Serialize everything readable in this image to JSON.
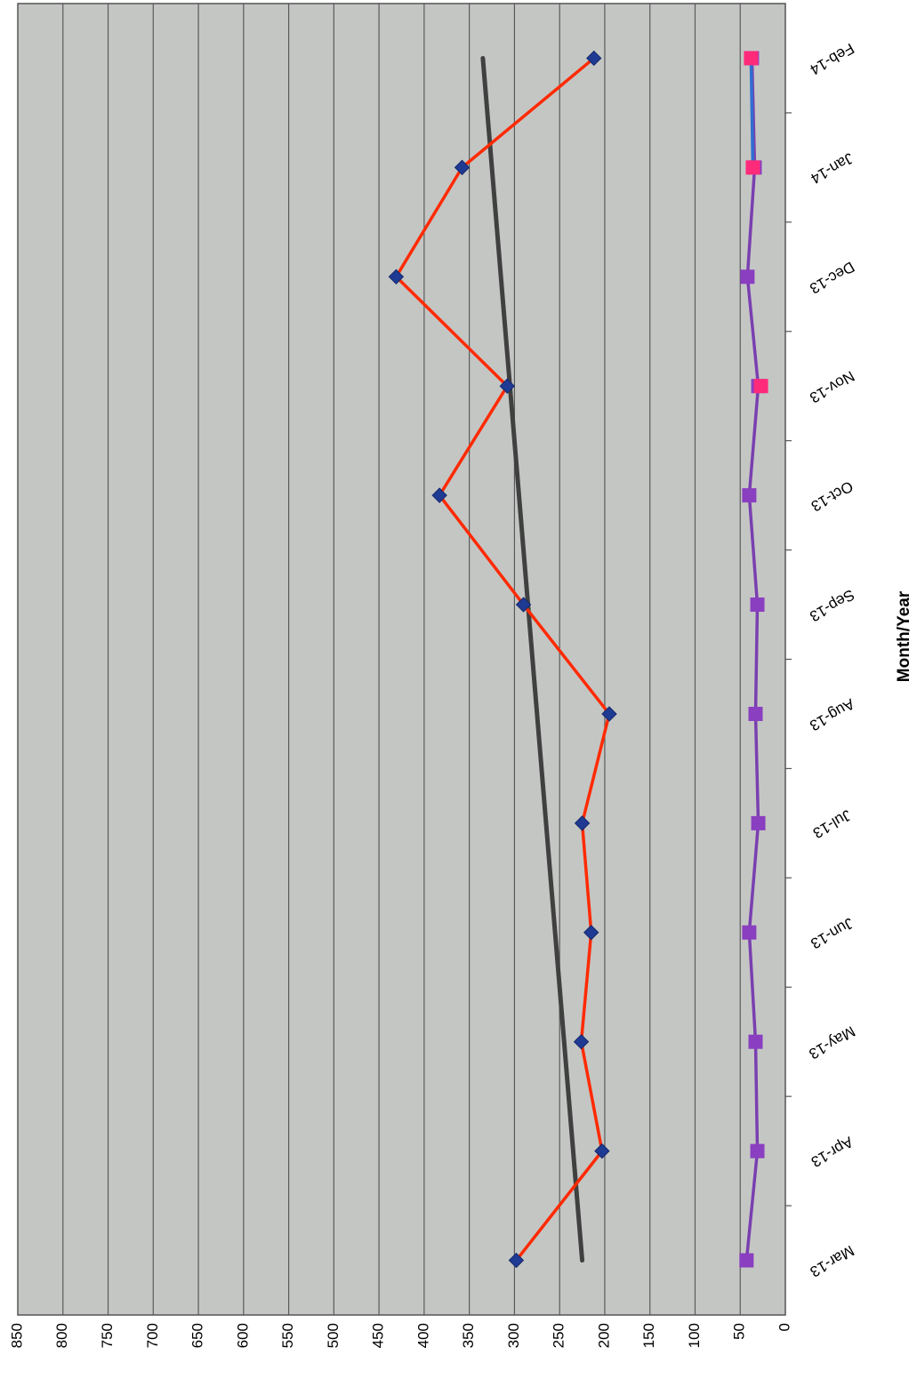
{
  "chart_data": {
    "type": "line",
    "orientation": "rotated-90-clockwise",
    "xlabel": "Month/Year",
    "ylabel": "",
    "categories": [
      "Mar-13",
      "Apr-13",
      "May-13",
      "Jun-13",
      "Jul-13",
      "Aug-13",
      "Sep-13",
      "Oct-13",
      "Nov-13",
      "Dec-13",
      "Jan-14",
      "Feb-14"
    ],
    "ylim": [
      0,
      850
    ],
    "yticks": [
      0,
      50,
      100,
      150,
      200,
      250,
      300,
      350,
      400,
      450,
      500,
      550,
      600,
      650,
      700,
      750,
      800,
      850
    ],
    "grid": true,
    "series": [
      {
        "color": "#ff2a00",
        "marker": "diamond",
        "marker_color": "#1f3a93",
        "values": [
          298,
          203,
          226,
          215,
          225,
          195,
          290,
          383,
          308,
          431,
          358,
          212
        ]
      },
      {
        "color": "#404040",
        "marker": "none",
        "trend": true,
        "values": [
          225,
          235,
          245,
          255,
          265,
          275,
          285,
          295,
          305,
          315,
          325,
          335
        ]
      },
      {
        "color": "#7a3fb0",
        "marker": "square",
        "marker_color": "#8a3ec0",
        "values": [
          43,
          31,
          33,
          40,
          30,
          33,
          31,
          40,
          30,
          42,
          34,
          37
        ]
      },
      {
        "color": "#2f6fd0",
        "marker": "square",
        "marker_color": "#ff2a7a",
        "values": [
          null,
          null,
          null,
          null,
          null,
          null,
          null,
          null,
          27,
          null,
          36,
          38
        ]
      }
    ],
    "colors": {
      "plot_background": "#c4c6c4",
      "gridline": "#5a5a5a"
    }
  }
}
